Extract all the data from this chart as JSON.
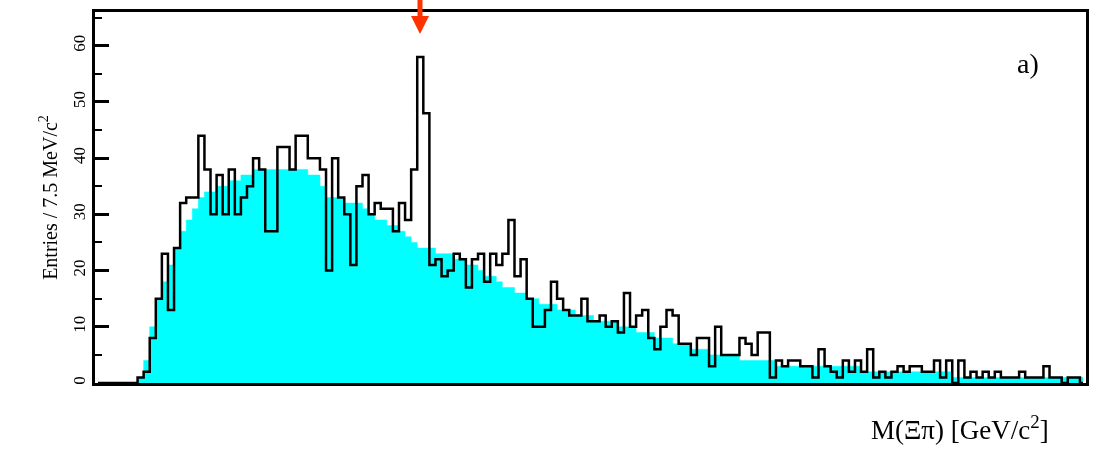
{
  "chart_data": {
    "type": "step",
    "xlabel": "M(Ξπ) [GeV/c$^{2}$]",
    "ylabel": "Entries / 7.5 MeV/c$^{2}$",
    "annotations": [
      "a)"
    ],
    "categories": [
      null,
      null,
      null,
      null,
      null,
      null,
      null,
      null,
      null,
      null,
      null,
      null,
      null,
      null,
      null,
      null,
      null,
      null,
      null,
      null,
      null,
      null,
      null,
      null,
      null,
      null,
      null,
      null,
      null,
      null,
      null,
      null,
      null,
      null,
      null,
      null,
      null,
      null,
      null,
      null,
      null,
      null,
      null,
      null,
      null,
      null,
      null,
      null,
      null,
      null,
      null,
      null,
      null,
      null,
      null,
      null,
      null,
      null,
      null,
      null,
      null,
      null,
      null,
      null,
      null,
      null,
      null,
      null,
      null,
      null,
      null,
      null,
      null,
      null,
      null,
      null,
      null,
      null,
      null,
      null,
      null,
      null,
      null,
      null,
      null,
      null,
      null,
      null,
      null,
      null,
      null,
      null,
      null,
      null,
      null,
      null,
      null,
      null,
      null,
      null,
      null,
      null,
      null,
      null,
      null,
      null,
      null,
      null,
      null,
      null,
      null,
      null,
      null,
      null,
      null,
      null,
      null,
      null,
      null,
      null,
      null,
      null,
      null,
      null,
      null,
      null,
      null,
      null,
      null,
      null,
      null,
      null,
      null,
      null,
      null,
      null,
      null,
      null,
      null,
      null,
      null,
      null,
      null,
      null,
      null,
      null,
      null,
      null,
      null,
      null,
      null,
      null,
      null,
      null,
      null,
      null,
      null,
      null,
      null,
      null,
      null,
      null,
      null
    ],
    "series": [
      {
        "type": "area",
        "color": "#00ffff",
        "values": [
          0,
          0,
          0,
          0,
          0,
          0,
          0,
          1,
          4,
          10,
          15,
          18,
          21,
          24,
          27,
          29,
          31,
          33,
          34,
          34,
          35,
          35,
          36,
          36,
          37,
          37,
          38,
          38,
          38,
          38,
          38,
          38,
          38,
          38,
          38,
          37,
          37,
          35,
          33,
          33,
          33,
          32,
          32,
          32,
          31,
          30,
          29,
          29,
          28,
          28,
          27,
          26,
          25,
          24,
          24,
          24,
          23,
          23,
          23,
          22,
          22,
          21,
          21,
          20,
          19,
          19,
          18,
          17,
          17,
          16,
          16,
          15,
          15,
          14,
          14,
          14,
          13,
          13,
          13,
          12,
          12,
          12,
          11,
          11,
          11,
          11,
          10,
          10,
          10,
          9,
          9,
          9,
          8,
          8,
          8,
          7,
          7,
          7,
          6,
          6,
          6,
          5,
          5,
          5,
          5,
          5,
          4,
          4,
          4,
          4,
          4,
          4,
          3,
          3,
          3,
          3,
          3,
          3,
          3,
          3,
          3,
          3,
          3,
          3,
          3,
          3,
          2,
          2,
          2,
          2,
          2,
          2,
          2,
          2,
          2,
          2,
          2,
          2,
          2,
          2,
          2,
          1,
          1,
          1,
          1,
          1,
          1,
          1,
          1,
          1,
          1,
          1,
          1,
          1,
          1,
          1,
          1,
          1,
          1,
          1,
          1,
          1,
          1
        ]
      },
      {
        "type": "step",
        "color": "#000000",
        "values": [
          0,
          0,
          0,
          0,
          0,
          0,
          0,
          1,
          2,
          8,
          15,
          23,
          13,
          24,
          32,
          33,
          33,
          44,
          38,
          30,
          37,
          30,
          38,
          30,
          33,
          35,
          40,
          38,
          27,
          27,
          42,
          42,
          38,
          44,
          44,
          40,
          40,
          38,
          20,
          40,
          33,
          30,
          21,
          35,
          37,
          30,
          32,
          31,
          31,
          27,
          32,
          29,
          38,
          58,
          48,
          21,
          22,
          19,
          20,
          23,
          22,
          17,
          22,
          23,
          18,
          23,
          21,
          23,
          29,
          19,
          22,
          15,
          10,
          10,
          13,
          18,
          15,
          13,
          12,
          12,
          15,
          11,
          11,
          12,
          10,
          11,
          9,
          16,
          10,
          12,
          13,
          8,
          6,
          10,
          13,
          12,
          7,
          7,
          5,
          8,
          8,
          3,
          10,
          5,
          5,
          5,
          8,
          7,
          5,
          9,
          9,
          1,
          4,
          3,
          4,
          4,
          3,
          3,
          1,
          6,
          3,
          2,
          1,
          4,
          2,
          4,
          2,
          6,
          1,
          2,
          1,
          2,
          3,
          2,
          3,
          3,
          2,
          2,
          4,
          1,
          4,
          0,
          4,
          1,
          2,
          1,
          2,
          1,
          2,
          1,
          1,
          1,
          2,
          1,
          1,
          1,
          3,
          1,
          1,
          0,
          1,
          1,
          0
        ]
      }
    ],
    "ylim": [
      0,
      66
    ],
    "yticks": [
      0,
      10,
      20,
      30,
      40,
      50,
      60
    ],
    "grid": false
  }
}
